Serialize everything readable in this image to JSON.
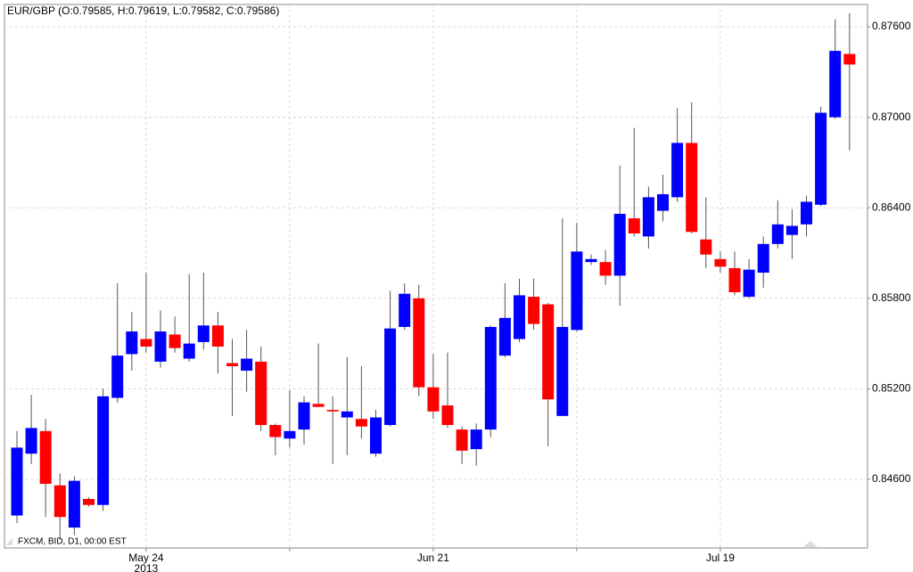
{
  "chart_data": {
    "type": "candlestick",
    "title": "EUR/GBP (O:0.79585, H:0.79619, L:0.79582, C:0.79586)",
    "footer_label": "FXCM, BID, D1, 00:00 EST",
    "year_label": "2013",
    "categories": [
      null,
      null,
      null,
      null,
      null,
      null,
      null,
      null,
      null,
      "May 24",
      null,
      null,
      null,
      null,
      null,
      null,
      null,
      null,
      null,
      null,
      null,
      null,
      null,
      null,
      null,
      null,
      null,
      null,
      null,
      "Jun 21",
      null,
      null,
      null,
      null,
      null,
      null,
      null,
      null,
      null,
      null,
      null,
      null,
      null,
      null,
      null,
      null,
      null,
      null,
      null,
      "Jul 19",
      null,
      null,
      null,
      null,
      null,
      null,
      null,
      null,
      null
    ],
    "open": [
      0.8436,
      0.8477,
      0.8492,
      0.8456,
      0.8428,
      0.8447,
      0.8443,
      0.8514,
      0.8543,
      0.8553,
      0.8538,
      0.8556,
      0.854,
      0.8551,
      0.8562,
      0.8537,
      0.8532,
      0.8538,
      0.8496,
      0.8487,
      0.8493,
      0.851,
      0.8506,
      0.8501,
      0.85,
      0.8477,
      0.8496,
      0.8561,
      0.858,
      0.8521,
      0.8509,
      0.8493,
      0.848,
      0.8493,
      0.8542,
      0.8553,
      0.8581,
      0.8576,
      0.8502,
      0.8559,
      0.8604,
      0.8604,
      0.8595,
      0.8633,
      0.8621,
      0.8638,
      0.8647,
      0.8683,
      0.8619,
      0.8606,
      0.86,
      0.8581,
      0.8597,
      0.8616,
      0.8622,
      0.8629,
      0.8642,
      0.87,
      0.8742
    ],
    "high": [
      0.8492,
      0.8516,
      0.85,
      0.8464,
      0.8462,
      0.8448,
      0.852,
      0.859,
      0.8571,
      0.8597,
      0.8572,
      0.8568,
      0.8596,
      0.8597,
      0.8571,
      0.8553,
      0.8559,
      0.8548,
      0.8497,
      0.8519,
      0.8515,
      0.855,
      0.8515,
      0.8541,
      0.8535,
      0.8506,
      0.8585,
      0.859,
      0.8589,
      0.8543,
      0.8544,
      0.8495,
      0.8497,
      0.8562,
      0.859,
      0.8593,
      0.8593,
      0.8577,
      0.8633,
      0.863,
      0.8609,
      0.8612,
      0.8668,
      0.8693,
      0.8654,
      0.8662,
      0.8706,
      0.871,
      0.8647,
      0.8611,
      0.8611,
      0.8606,
      0.8621,
      0.8645,
      0.8639,
      0.8648,
      0.8707,
      0.8765,
      0.8769
    ],
    "low": [
      0.8431,
      0.847,
      0.8435,
      0.842,
      0.8423,
      0.8442,
      0.8439,
      0.8511,
      0.8532,
      0.8544,
      0.8534,
      0.8544,
      0.8538,
      0.8546,
      0.853,
      0.8502,
      0.8518,
      0.8492,
      0.8476,
      0.8481,
      0.8483,
      0.8508,
      0.847,
      0.8476,
      0.8487,
      0.8475,
      0.8495,
      0.8559,
      0.8515,
      0.85,
      0.8494,
      0.847,
      0.8469,
      0.8488,
      0.8541,
      0.8551,
      0.8559,
      0.8482,
      0.8502,
      0.8558,
      0.8602,
      0.8589,
      0.8575,
      0.8621,
      0.8613,
      0.8631,
      0.8644,
      0.8623,
      0.86,
      0.8597,
      0.8582,
      0.858,
      0.8587,
      0.8613,
      0.8606,
      0.8621,
      0.8641,
      0.8699,
      0.8678
    ],
    "close": [
      0.8481,
      0.8494,
      0.8457,
      0.8435,
      0.8459,
      0.8443,
      0.8515,
      0.8542,
      0.8558,
      0.8548,
      0.8558,
      0.8547,
      0.855,
      0.8562,
      0.8548,
      0.8535,
      0.854,
      0.8496,
      0.8488,
      0.8492,
      0.8511,
      0.8508,
      0.8505,
      0.8505,
      0.8495,
      0.8501,
      0.856,
      0.8583,
      0.8521,
      0.8505,
      0.8496,
      0.8479,
      0.8493,
      0.8561,
      0.8567,
      0.8582,
      0.8563,
      0.8513,
      0.8561,
      0.8611,
      0.8606,
      0.8595,
      0.8636,
      0.8623,
      0.8647,
      0.8649,
      0.8683,
      0.8624,
      0.8609,
      0.8601,
      0.8584,
      0.8599,
      0.8616,
      0.8629,
      0.8628,
      0.8644,
      0.8703,
      0.8744,
      0.8735
    ],
    "up_color": "#0000ff",
    "down_color": "#ff0000",
    "ylim": [
      0.84145,
      0.87748
    ],
    "yticks": [
      {
        "value": 0.846,
        "label": "0.84600"
      },
      {
        "value": 0.852,
        "label": "0.85200"
      },
      {
        "value": 0.858,
        "label": "0.85800"
      },
      {
        "value": 0.864,
        "label": "0.86400"
      },
      {
        "value": 0.87,
        "label": "0.87000"
      },
      {
        "value": 0.876,
        "label": "0.87600"
      }
    ],
    "grid": true
  }
}
